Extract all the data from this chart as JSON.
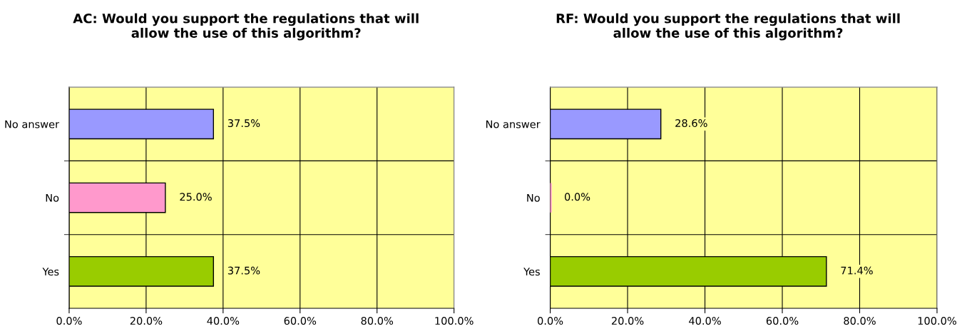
{
  "chart_data": [
    {
      "type": "bar",
      "orientation": "horizontal",
      "title": "AC: Would you support the regulations that will\nallow the use of this algorithm?",
      "categories": [
        "No answer",
        "No",
        "Yes"
      ],
      "values": [
        37.5,
        25.0,
        37.5
      ],
      "colors": [
        "#9999ff",
        "#ff99cc",
        "#99cc00"
      ],
      "value_labels": [
        "37.5%",
        "25.0%",
        "37.5%"
      ],
      "xlim": [
        0,
        100
      ],
      "xticks": [
        {
          "value": 0,
          "label": "0.0%"
        },
        {
          "value": 20,
          "label": "20.0%"
        },
        {
          "value": 40,
          "label": "40.0%"
        },
        {
          "value": 60,
          "label": "60.0%"
        },
        {
          "value": 80,
          "label": "80.0%"
        },
        {
          "value": 100,
          "label": "100.0%"
        }
      ],
      "grid": true
    },
    {
      "type": "bar",
      "orientation": "horizontal",
      "title": "RF: Would you support the regulations that will\nallow the use of this algorithm?",
      "categories": [
        "No answer",
        "No",
        "Yes"
      ],
      "values": [
        28.6,
        0.0,
        71.4
      ],
      "colors": [
        "#9999ff",
        "#ff99cc",
        "#99cc00"
      ],
      "value_labels": [
        "28.6%",
        "0.0%",
        "71.4%"
      ],
      "xlim": [
        0,
        100
      ],
      "xticks": [
        {
          "value": 0,
          "label": "0.0%"
        },
        {
          "value": 20,
          "label": "20.0%"
        },
        {
          "value": 40,
          "label": "40.0%"
        },
        {
          "value": 60,
          "label": "60.0%"
        },
        {
          "value": 80,
          "label": "80.0%"
        },
        {
          "value": 100,
          "label": "100.0%"
        }
      ],
      "grid": true
    }
  ]
}
